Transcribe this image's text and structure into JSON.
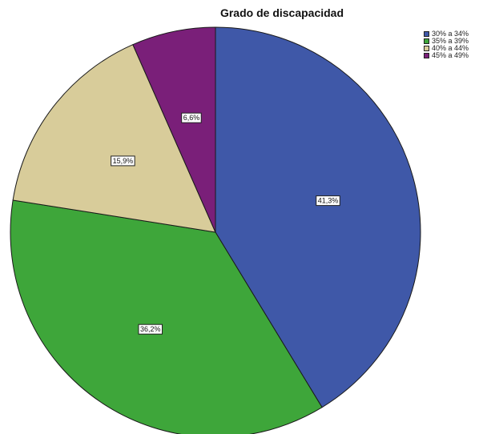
{
  "chart_data": {
    "type": "pie",
    "title": "Grado de discapacidad",
    "legend_position": "top-right",
    "slices": [
      {
        "label": "30% a 34%",
        "value": 41.3,
        "value_label": "41,3%",
        "color": "#3f58a8"
      },
      {
        "label": "35% a 39%",
        "value": 36.2,
        "value_label": "36,2%",
        "color": "#3ea63a"
      },
      {
        "label": "40% a 44%",
        "value": 15.9,
        "value_label": "15,9%",
        "color": "#d8cc9a"
      },
      {
        "label": "45% a 49%",
        "value": 6.6,
        "value_label": "6,6%",
        "color": "#7a1f79"
      }
    ]
  }
}
